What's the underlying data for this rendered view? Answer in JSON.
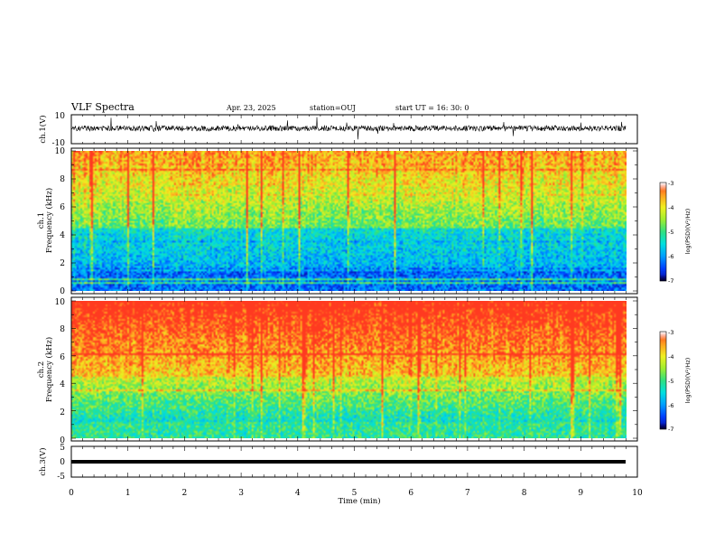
{
  "header": {
    "title": "VLF Spectra",
    "date": "Apr. 23, 2025",
    "station": "station=OUJ",
    "start": "start  UT  =   16: 30: 0"
  },
  "colors": {
    "spectrum": [
      "#0a0aa0",
      "#0040ff",
      "#00a0ff",
      "#00e0e0",
      "#30e080",
      "#a0ee30",
      "#f0f020",
      "#ffa020",
      "#ff3a20"
    ]
  },
  "chart_data": [
    {
      "type": "line",
      "name": "ch1-waveform",
      "ylabel": "ch.1(V)",
      "ylim": [
        -10,
        10
      ],
      "y_ticks": [
        "10",
        "-10"
      ],
      "xlim": [
        0,
        10
      ]
    },
    {
      "type": "heatmap",
      "name": "ch1-spectrogram",
      "ylabel_top": "ch.1",
      "ylabel": "Frequency (kHz)",
      "ylim": [
        0,
        10
      ],
      "y_ticks": [
        "0",
        "2",
        "4",
        "6",
        "8",
        "10"
      ],
      "xlim": [
        0,
        10
      ],
      "colorbar": {
        "label": "log(PSD)(V²/Hz)",
        "range": [
          -7,
          -3
        ],
        "ticks": [
          "-3",
          "-4",
          "-5",
          "-6",
          "-7"
        ]
      }
    },
    {
      "type": "heatmap",
      "name": "ch2-spectrogram",
      "ylabel_top": "ch.2",
      "ylabel": "Frequency (kHz)",
      "ylim": [
        0,
        10
      ],
      "y_ticks": [
        "0",
        "2",
        "4",
        "6",
        "8",
        "10"
      ],
      "xlim": [
        0,
        10
      ],
      "colorbar": {
        "label": "log(PSD)(V²/Hz)",
        "range": [
          -7,
          -3
        ],
        "ticks": [
          "-3",
          "-4",
          "-5",
          "-6",
          "-7"
        ]
      }
    },
    {
      "type": "line",
      "name": "ch3-waveform",
      "ylabel": "ch.3(V)",
      "ylim": [
        -5,
        5
      ],
      "y_ticks": [
        "5",
        "0",
        "-5"
      ],
      "xlim": [
        0,
        10
      ]
    }
  ],
  "x_axis": {
    "label": "Time  (min)",
    "ticks": [
      "0",
      "1",
      "2",
      "3",
      "4",
      "5",
      "6",
      "7",
      "8",
      "9",
      "10"
    ]
  }
}
